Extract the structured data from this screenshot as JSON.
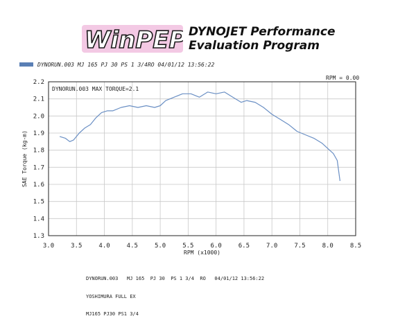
{
  "logo": {
    "text": "WinPEP"
  },
  "brand": {
    "line1": "DYNOJET Performance",
    "line2": "Evaluation Program"
  },
  "legend": {
    "label": "DYNORUN.003  MJ 165  PJ 30  PS 1 3/4RO  04/01/12 13:56:22",
    "color": "#5a7fb5"
  },
  "rpm_readout": "RPM = 0.00",
  "footer": {
    "lines": [
      "DYNORUN.003   MJ 165  PJ 30  PS 1 3/4  RO   04/01/12 13:56:22",
      "YOSHIMURA FULL EX",
      "MJ165 PJ30 PS1 3/4"
    ]
  },
  "chart_data": {
    "type": "line",
    "annotation": "DYNORUN.003  MAX TORQUE=2.1",
    "xlabel": "RPM (x1000)",
    "ylabel": "SAE Torque (kg-m)",
    "xlim": [
      3.0,
      8.5
    ],
    "ylim": [
      1.3,
      2.2
    ],
    "x_ticks": [
      "3.0",
      "3.5",
      "4.0",
      "4.5",
      "5.0",
      "5.5",
      "6.0",
      "6.5",
      "7.0",
      "7.5",
      "8.0",
      "8.5"
    ],
    "y_ticks": [
      "1.3",
      "1.4",
      "1.5",
      "1.6",
      "1.7",
      "1.8",
      "1.9",
      "2.0",
      "2.1",
      "2.2"
    ],
    "grid": true,
    "series": [
      {
        "color": "#6a8fc4",
        "x": [
          3.2,
          3.3,
          3.38,
          3.45,
          3.55,
          3.65,
          3.75,
          3.85,
          3.95,
          4.05,
          4.15,
          4.3,
          4.45,
          4.6,
          4.75,
          4.9,
          5.0,
          5.1,
          5.25,
          5.4,
          5.55,
          5.7,
          5.85,
          6.0,
          6.15,
          6.3,
          6.45,
          6.55,
          6.7,
          6.85,
          7.0,
          7.15,
          7.3,
          7.45,
          7.6,
          7.75,
          7.9,
          8.0,
          8.1,
          8.17,
          8.22
        ],
        "y": [
          1.88,
          1.87,
          1.85,
          1.86,
          1.9,
          1.93,
          1.95,
          1.99,
          2.02,
          2.03,
          2.03,
          2.05,
          2.06,
          2.05,
          2.06,
          2.05,
          2.06,
          2.09,
          2.11,
          2.13,
          2.13,
          2.11,
          2.14,
          2.13,
          2.14,
          2.11,
          2.08,
          2.09,
          2.08,
          2.05,
          2.01,
          1.98,
          1.95,
          1.91,
          1.89,
          1.87,
          1.84,
          1.81,
          1.78,
          1.74,
          1.62
        ]
      }
    ]
  }
}
